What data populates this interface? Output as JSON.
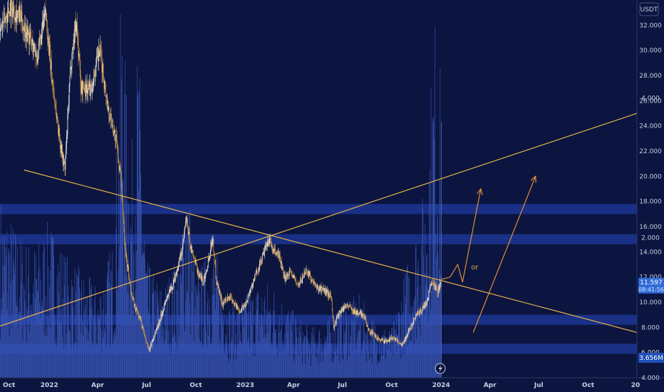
{
  "chart_data": {
    "type": "candlestick",
    "title": "",
    "symbol_label": "",
    "currency_badge": "USDT",
    "price_scale": {
      "ylim": [
        4000,
        34000
      ],
      "ticks": [
        "4.000",
        "6.000",
        "8.000",
        "10.000",
        "12.000",
        "14.000",
        "16.000",
        "18.000",
        "20.000",
        "22.000",
        "24.000",
        "26.000",
        "28.000",
        "30.000",
        "32.000"
      ],
      "tick_values": [
        4000,
        6000,
        8000,
        10000,
        12000,
        14000,
        16000,
        18000,
        20000,
        22000,
        24000,
        26000,
        28000,
        30000,
        32000
      ]
    },
    "volume_scale": {
      "ylim": [
        0,
        5400000
      ],
      "ticks": [
        "2.000",
        "4.000"
      ],
      "tick_values": [
        2000000,
        4000000
      ]
    },
    "time_axis": {
      "range": [
        "2021-10-01",
        "2024-12-31"
      ],
      "labels": [
        "Oct",
        "2022",
        "Apr",
        "Jul",
        "Oct",
        "2023",
        "Apr",
        "Jul",
        "Oct",
        "2024",
        "Apr",
        "Jul",
        "Oct",
        "20"
      ],
      "label_dates": [
        "2021-10-01",
        "2022-01-01",
        "2022-04-01",
        "2022-07-01",
        "2022-10-01",
        "2023-01-01",
        "2023-04-01",
        "2023-07-01",
        "2023-10-01",
        "2024-01-01",
        "2024-04-01",
        "2024-07-01",
        "2024-10-01",
        "2025-01-01"
      ]
    },
    "last_price": {
      "value": 11597,
      "label": "11.597",
      "countdown": "08:41:56"
    },
    "last_volume": {
      "value": 3656000,
      "label": "3.656M"
    },
    "price_path": [
      [
        "2021-10-01",
        31500
      ],
      [
        "2021-10-20",
        33500
      ],
      [
        "2021-11-05",
        32800
      ],
      [
        "2021-11-25",
        31000
      ],
      [
        "2021-12-10",
        29500
      ],
      [
        "2021-12-25",
        33000
      ],
      [
        "2022-01-05",
        28000
      ],
      [
        "2022-01-20",
        23000
      ],
      [
        "2022-01-30",
        20500
      ],
      [
        "2022-02-10",
        29000
      ],
      [
        "2022-02-20",
        32500
      ],
      [
        "2022-03-01",
        27000
      ],
      [
        "2022-03-20",
        27000
      ],
      [
        "2022-04-05",
        30000
      ],
      [
        "2022-04-20",
        25500
      ],
      [
        "2022-05-05",
        23000
      ],
      [
        "2022-05-15",
        19500
      ],
      [
        "2022-05-22",
        14500
      ],
      [
        "2022-06-01",
        11000
      ],
      [
        "2022-06-10",
        9500
      ],
      [
        "2022-06-20",
        8600
      ],
      [
        "2022-06-28",
        7200
      ],
      [
        "2022-07-06",
        6200
      ],
      [
        "2022-07-15",
        7300
      ],
      [
        "2022-07-25",
        8500
      ],
      [
        "2022-08-05",
        10000
      ],
      [
        "2022-08-20",
        11500
      ],
      [
        "2022-09-05",
        14000
      ],
      [
        "2022-09-13",
        16600
      ],
      [
        "2022-09-22",
        14200
      ],
      [
        "2022-10-05",
        12400
      ],
      [
        "2022-10-15",
        11600
      ],
      [
        "2022-10-25",
        13500
      ],
      [
        "2022-11-01",
        15200
      ],
      [
        "2022-11-08",
        11800
      ],
      [
        "2022-11-20",
        9800
      ],
      [
        "2022-12-05",
        10500
      ],
      [
        "2022-12-20",
        9300
      ],
      [
        "2023-01-01",
        9800
      ],
      [
        "2023-01-15",
        11500
      ],
      [
        "2023-02-01",
        13500
      ],
      [
        "2023-02-15",
        15000
      ],
      [
        "2023-02-22",
        14000
      ],
      [
        "2023-03-05",
        13800
      ],
      [
        "2023-03-15",
        11800
      ],
      [
        "2023-03-25",
        12500
      ],
      [
        "2023-04-10",
        11300
      ],
      [
        "2023-04-25",
        12600
      ],
      [
        "2023-05-10",
        11300
      ],
      [
        "2023-05-25",
        11000
      ],
      [
        "2023-06-10",
        10500
      ],
      [
        "2023-06-15",
        8000
      ],
      [
        "2023-06-25",
        9200
      ],
      [
        "2023-07-10",
        9800
      ],
      [
        "2023-07-25",
        9200
      ],
      [
        "2023-08-10",
        9000
      ],
      [
        "2023-08-20",
        7700
      ],
      [
        "2023-09-05",
        7100
      ],
      [
        "2023-09-20",
        6900
      ],
      [
        "2023-10-05",
        7200
      ],
      [
        "2023-10-20",
        6600
      ],
      [
        "2023-11-01",
        7600
      ],
      [
        "2023-11-15",
        9000
      ],
      [
        "2023-11-25",
        9300
      ],
      [
        "2023-12-05",
        10000
      ],
      [
        "2023-12-15",
        11800
      ],
      [
        "2023-12-25",
        10800
      ],
      [
        "2024-01-01",
        11597
      ]
    ],
    "volume_path": [
      [
        "2021-10-01",
        2200000
      ],
      [
        "2021-11-01",
        1800000
      ],
      [
        "2021-12-01",
        1600000
      ],
      [
        "2022-01-01",
        1900000
      ],
      [
        "2022-02-01",
        1500000
      ],
      [
        "2022-03-01",
        1300000
      ],
      [
        "2022-04-01",
        1100000
      ],
      [
        "2022-05-01",
        1700000
      ],
      [
        "2022-05-15",
        4800000
      ],
      [
        "2022-06-01",
        2500000
      ],
      [
        "2022-06-15",
        4200000
      ],
      [
        "2022-07-01",
        1400000
      ],
      [
        "2022-08-01",
        1100000
      ],
      [
        "2022-09-01",
        1600000
      ],
      [
        "2022-09-15",
        2600000
      ],
      [
        "2022-10-01",
        1200000
      ],
      [
        "2022-11-01",
        1700000
      ],
      [
        "2022-12-01",
        900000
      ],
      [
        "2023-01-01",
        1000000
      ],
      [
        "2023-02-01",
        1200000
      ],
      [
        "2023-03-01",
        1100000
      ],
      [
        "2023-04-01",
        800000
      ],
      [
        "2023-05-01",
        600000
      ],
      [
        "2023-06-01",
        700000
      ],
      [
        "2023-07-01",
        900000
      ],
      [
        "2023-08-01",
        1000000
      ],
      [
        "2023-09-01",
        700000
      ],
      [
        "2023-10-01",
        600000
      ],
      [
        "2023-11-01",
        1500000
      ],
      [
        "2023-12-01",
        2300000
      ],
      [
        "2023-12-20",
        4400000
      ],
      [
        "2024-01-01",
        3656000
      ]
    ],
    "support_resistance_zones": [
      {
        "from": 17000,
        "to": 17800
      },
      {
        "from": 14600,
        "to": 15400
      },
      {
        "from": 8200,
        "to": 9000
      },
      {
        "from": 5900,
        "to": 6700
      }
    ],
    "trendlines": [
      {
        "name": "descending",
        "from": [
          "2021-11-15",
          20500
        ],
        "to": [
          "2024-12-31",
          7600
        ]
      },
      {
        "name": "ascending",
        "from": [
          "2021-10-01",
          8100
        ],
        "to": [
          "2024-12-31",
          25000
        ]
      }
    ],
    "projection_arrows": [
      {
        "points": [
          [
            "2024-01-01",
            11800
          ],
          [
            "2024-01-18",
            12000
          ],
          [
            "2024-02-01",
            13000
          ],
          [
            "2024-02-10",
            11600
          ],
          [
            "2024-03-15",
            19000
          ]
        ]
      },
      {
        "points": [
          [
            "2024-03-01",
            7600
          ],
          [
            "2024-06-25",
            20000
          ]
        ]
      }
    ],
    "annotation": {
      "text": "or",
      "at": [
        "2024-02-26",
        12600
      ]
    },
    "colors": {
      "background": "#0b1540",
      "candle_up": "#f3f1ea",
      "candle_down": "#d89a3c",
      "volume": "#3a57b8",
      "volume_last": "#6a86d8",
      "zone": "#1f3a9e",
      "trendline": "#e9b24a",
      "arrow": "#e08f35",
      "axis_text": "#c8cde0",
      "badge_price": "#2f6bd8",
      "badge_volume": "#1e4fb8"
    }
  }
}
